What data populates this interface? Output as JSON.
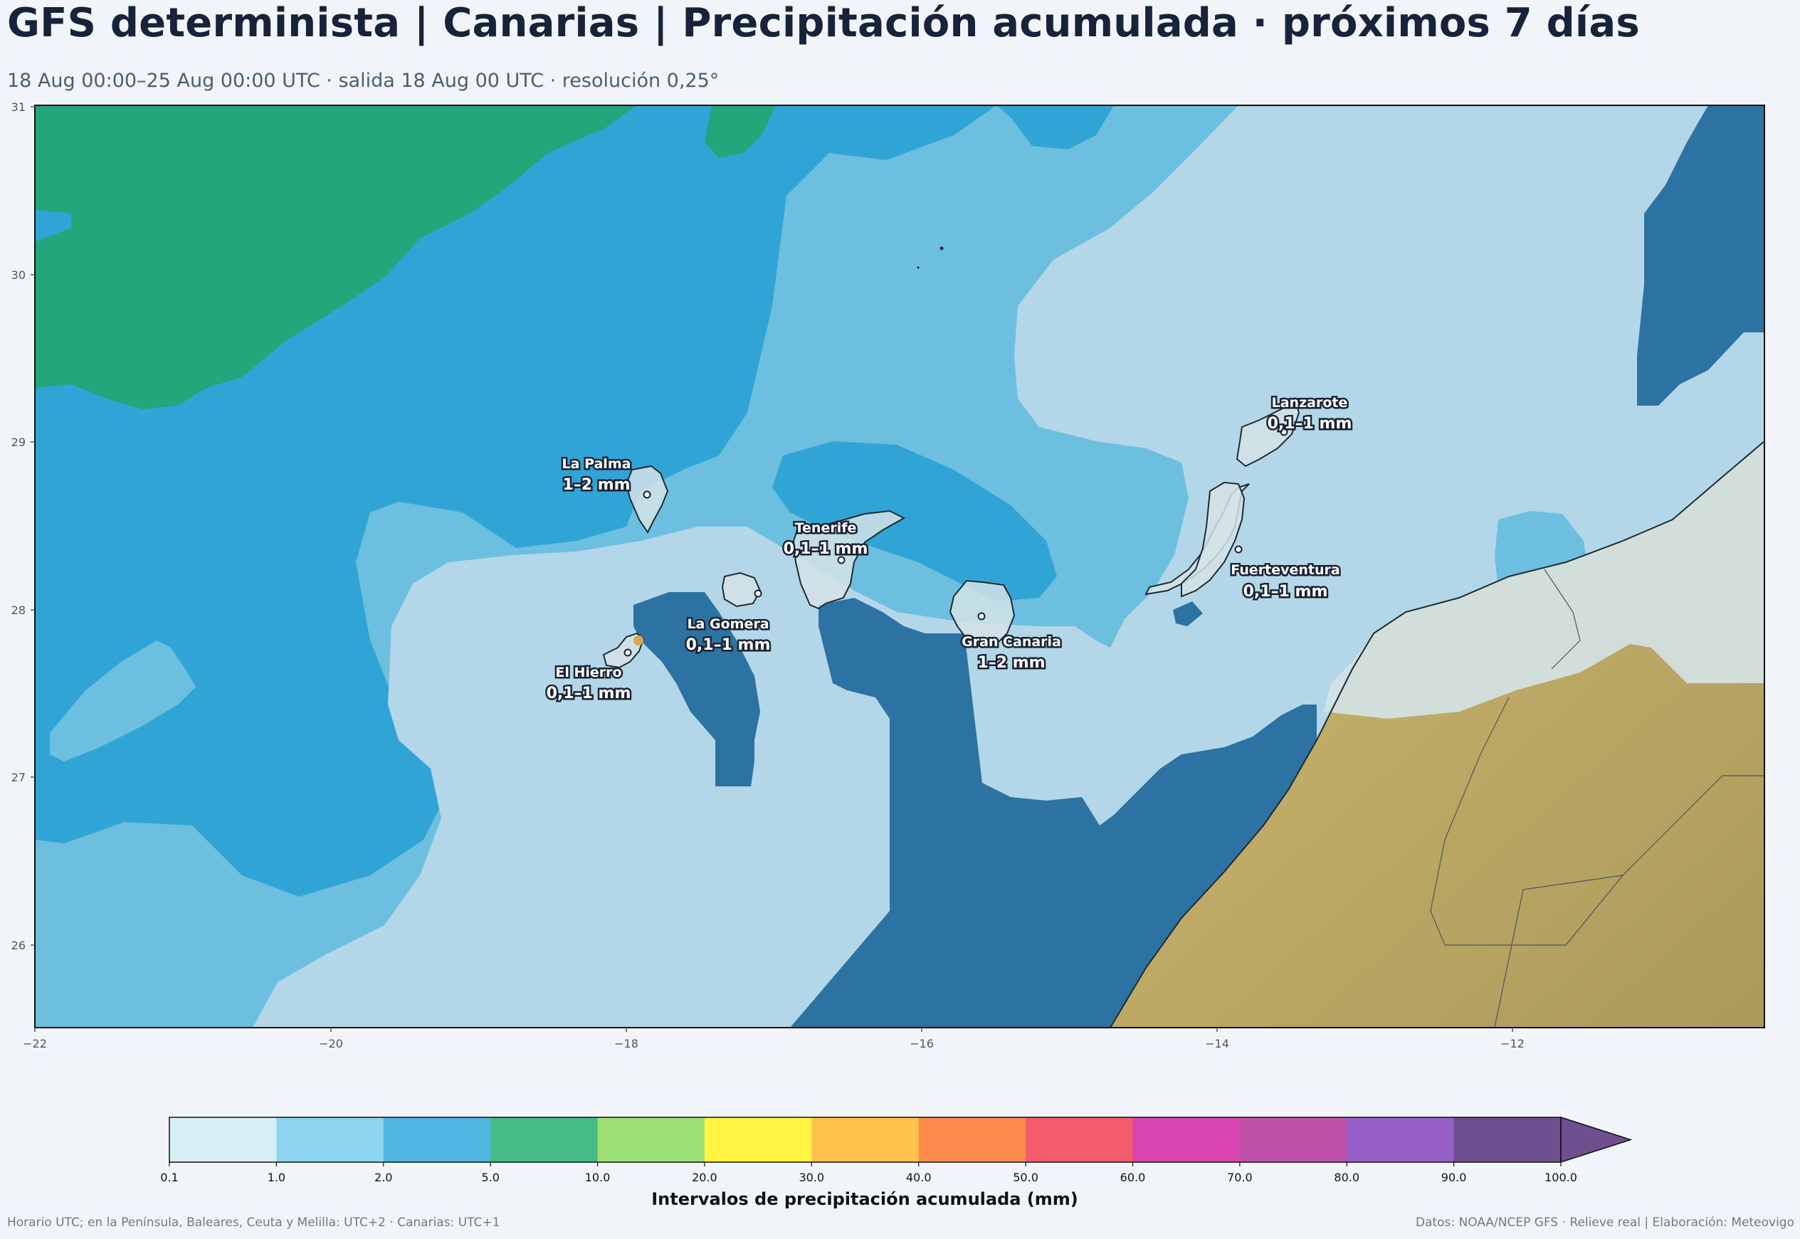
{
  "header": {
    "title": "GFS determinista | Canarias | Precipitación acumulada · próximos 7 días",
    "subtitle": "18 Aug 00:00–25 Aug 00:00 UTC · salida 18 Aug 00 UTC · resolución 0,25°"
  },
  "map": {
    "x_ticks": [
      "−22",
      "−20",
      "−18",
      "−16",
      "−14",
      "−12"
    ],
    "y_ticks": [
      "31",
      "30",
      "29",
      "28",
      "27",
      "26"
    ],
    "colors": {
      "band_01": "#b3d7e8",
      "band_1": "#6cbfdf",
      "band_2": "#31a4d6",
      "band_5": "#22a67a",
      "dark": "#2c72a2",
      "land": "#c6b06a",
      "island": "#d4e3e6"
    },
    "islands": [
      {
        "name": "La Palma",
        "value": "1–2 mm"
      },
      {
        "name": "Tenerife",
        "value": "0,1–1 mm"
      },
      {
        "name": "La Gomera",
        "value": "0,1–1 mm"
      },
      {
        "name": "El Hierro",
        "value": "0,1–1 mm"
      },
      {
        "name": "Gran Canaria",
        "value": "1–2 mm"
      },
      {
        "name": "Lanzarote",
        "value": "0,1–1 mm"
      },
      {
        "name": "Fuerteventura",
        "value": "0,1–1 mm"
      }
    ]
  },
  "colorbar": {
    "label": "Intervalos de precipitación acumulada (mm)",
    "ticks": [
      "0.1",
      "1.0",
      "2.0",
      "5.0",
      "10.0",
      "20.0",
      "30.0",
      "40.0",
      "50.0",
      "60.0",
      "70.0",
      "80.0",
      "90.0",
      "100.0"
    ],
    "colors": [
      "#d8eef5",
      "#8fd4ee",
      "#50b5e0",
      "#45bb86",
      "#9cdf75",
      "#fef441",
      "#ffc24d",
      "#fe8c4d",
      "#f35d6d",
      "#d944b0",
      "#be52a8",
      "#9660c8",
      "#6e4f90"
    ]
  },
  "footer": {
    "left": "Horario UTC; en la Península, Baleares, Ceuta y Melilla: UTC+2 · Canarias: UTC+1",
    "right": "Datos: NOAA/NCEP GFS · Relieve real | Elaboración: Meteovigo"
  }
}
